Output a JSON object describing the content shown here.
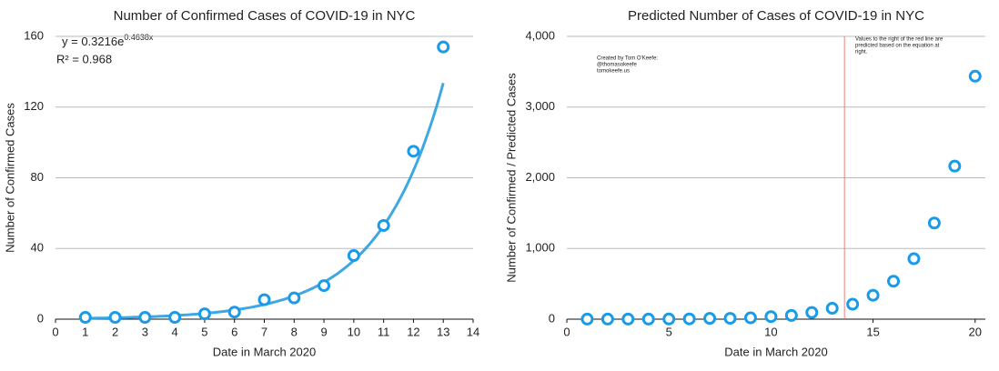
{
  "chart_data": [
    {
      "type": "scatter",
      "title": "Number of Confirmed Cases of COVID-19 in NYC",
      "x_label": "Date in March 2020",
      "y_label": "Number of Confirmed Cases",
      "x": [
        1,
        2,
        3,
        4,
        5,
        6,
        7,
        8,
        9,
        10,
        11,
        12,
        13
      ],
      "series": [
        {
          "name": "Confirmed",
          "color": "#1a9be8",
          "values": [
            1,
            1,
            1,
            1,
            3,
            4,
            11,
            12,
            19,
            36,
            53,
            95,
            154
          ]
        }
      ],
      "xlim": [
        0,
        14
      ],
      "xticks": [
        0,
        1,
        2,
        3,
        4,
        5,
        6,
        7,
        8,
        9,
        10,
        11,
        12,
        13,
        14
      ],
      "ylim": [
        0,
        160
      ],
      "yticks": [
        0,
        40,
        80,
        120,
        160
      ],
      "grid": true,
      "trendline": {
        "type": "exponential",
        "a": 0.3216,
        "b": 0.4638,
        "color": "#2a9de0"
      },
      "equation": "y = 0.3216e",
      "equation_exponent": "0.4638x",
      "r_squared": "R² = 0.968"
    },
    {
      "type": "scatter",
      "title": "Predicted Number of Cases of COVID-19 in NYC",
      "x_label": "Date in March 2020",
      "y_label": "Number of Confirmed / Predicted Cases",
      "x": [
        1,
        2,
        3,
        4,
        5,
        6,
        7,
        8,
        9,
        10,
        11,
        12,
        13,
        14,
        15,
        16,
        17,
        18,
        19,
        20
      ],
      "series": [
        {
          "name": "Cases",
          "color": "#1a9be8",
          "values": [
            1,
            1,
            1,
            1,
            3,
            4,
            11,
            12,
            19,
            36,
            53,
            95,
            154,
            212,
            338,
            537,
            855,
            1360,
            2165,
            3437
          ]
        }
      ],
      "xlim": [
        0,
        20.5
      ],
      "xticks": [
        0,
        5,
        10,
        15,
        20
      ],
      "ylim": [
        0,
        4000
      ],
      "yticks": [
        0,
        {
          "value": 1000,
          "label": "1,000"
        },
        {
          "value": 2000,
          "label": "2,000"
        },
        {
          "value": 3000,
          "label": "3,000"
        },
        {
          "value": 4000,
          "label": "4,000"
        }
      ],
      "grid": true,
      "vline": {
        "x": 13.6,
        "color": "#f08080"
      },
      "credit": [
        "Created by Tom O'Keefe:",
        "@thomasokeefe",
        "tomokeefe.us"
      ],
      "note": [
        "Values to the right of the red line are",
        "predicted based on the equation at",
        "right."
      ]
    }
  ]
}
